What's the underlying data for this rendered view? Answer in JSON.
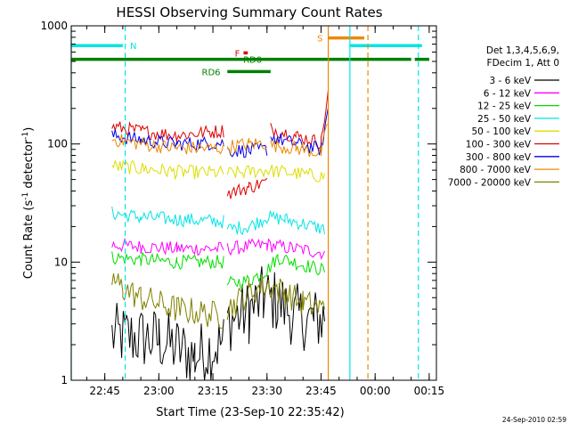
{
  "chart_data": {
    "type": "line",
    "title": "HESSI Observing Summary Count Rates",
    "xlabel": "Start Time (23-Sep-10 22:35:42)",
    "ylabel_main": "Count Rate (s",
    "ylabel_sup1": "-1",
    "ylabel_mid": " detector",
    "ylabel_sup2": "-1",
    "ylabel_end": ")",
    "y_scale": "log",
    "ylim": [
      1,
      1000
    ],
    "xlim": [
      "22:35:42",
      "00:17:00"
    ],
    "x_ticks": [
      "22:45",
      "23:00",
      "23:15",
      "23:30",
      "23:45",
      "00:00",
      "00:15"
    ],
    "y_ticks": [
      "1",
      "10",
      "100",
      "1000"
    ],
    "legend": {
      "position": "right",
      "header": [
        "Det 1,3,4,5,6,9,",
        "FDecim 1, Att 0"
      ]
    },
    "series": [
      {
        "name": "3 - 6 keV",
        "color": "#000000",
        "segments": [
          [
            [
              "22:47",
              2.4
            ],
            [
              "23:00",
              2.2
            ],
            [
              "23:10",
              1.6
            ],
            [
              "23:18",
              2.1
            ]
          ],
          [
            [
              "23:19",
              3.2
            ],
            [
              "23:25",
              3.8
            ],
            [
              "23:29",
              5.0
            ],
            [
              "23:33",
              4.6
            ],
            [
              "23:38",
              3.5
            ],
            [
              "23:43",
              3.2
            ],
            [
              "23:46",
              3.4
            ]
          ]
        ]
      },
      {
        "name": "6 - 12 keV",
        "color": "#ff00ff",
        "segments": [
          [
            [
              "22:47",
              14
            ],
            [
              "22:55",
              13.5
            ],
            [
              "23:05",
              13
            ],
            [
              "23:18",
              13
            ]
          ],
          [
            [
              "23:19",
              13
            ],
            [
              "23:30",
              14
            ],
            [
              "23:46",
              12
            ]
          ]
        ]
      },
      {
        "name": "12 - 25 keV",
        "color": "#00dd00",
        "segments": [
          [
            [
              "22:47",
              11
            ],
            [
              "22:55",
              10.5
            ],
            [
              "23:05",
              10
            ],
            [
              "23:18",
              10
            ]
          ],
          [
            [
              "23:19",
              6.5
            ],
            [
              "23:25",
              7.0
            ],
            [
              "23:30",
              8.5
            ],
            [
              "23:33",
              11
            ],
            [
              "23:40",
              9.5
            ],
            [
              "23:46",
              8.5
            ]
          ]
        ]
      },
      {
        "name": "25 - 50 keV",
        "color": "#00e5e5",
        "segments": [
          [
            [
              "22:47",
              26
            ],
            [
              "22:55",
              24
            ],
            [
              "23:05",
              23
            ],
            [
              "23:18",
              22
            ]
          ],
          [
            [
              "23:19",
              19
            ],
            [
              "23:25",
              20
            ],
            [
              "23:30",
              24
            ],
            [
              "23:35",
              23
            ],
            [
              "23:46",
              19
            ]
          ]
        ]
      },
      {
        "name": "50 - 100 keV",
        "color": "#dddd00",
        "segments": [
          [
            [
              "22:47",
              65
            ],
            [
              "22:55",
              62
            ],
            [
              "23:05",
              58
            ],
            [
              "23:18",
              57
            ]
          ],
          [
            [
              "23:19",
              56
            ],
            [
              "23:30",
              60
            ],
            [
              "23:46",
              53
            ]
          ]
        ]
      },
      {
        "name": "100 - 300 keV",
        "color": "#dd0000",
        "segments": [
          [
            [
              "22:47",
              140
            ],
            [
              "22:55",
              128
            ],
            [
              "23:05",
              118
            ],
            [
              "23:18",
              130
            ]
          ],
          [
            [
              "23:19",
              38
            ],
            [
              "23:25",
              43
            ],
            [
              "23:30",
              48
            ]
          ],
          [
            [
              "23:31",
              135
            ],
            [
              "23:38",
              117
            ],
            [
              "23:45",
              103
            ],
            [
              "23:47",
              280
            ]
          ]
        ]
      },
      {
        "name": "300 - 800 keV",
        "color": "#0000ee",
        "segments": [
          [
            [
              "22:47",
              118
            ],
            [
              "22:55",
              108
            ],
            [
              "23:05",
              100
            ],
            [
              "23:18",
              102
            ]
          ],
          [
            [
              "23:19",
              88
            ],
            [
              "23:25",
              88
            ],
            [
              "23:30",
              90
            ]
          ],
          [
            [
              "23:31",
              115
            ],
            [
              "23:38",
              100
            ],
            [
              "23:45",
              90
            ],
            [
              "23:47",
              200
            ]
          ]
        ]
      },
      {
        "name": "800 - 7000 keV",
        "color": "#ee8800",
        "segments": [
          [
            [
              "22:47",
              110
            ],
            [
              "22:55",
              100
            ],
            [
              "23:05",
              92
            ],
            [
              "23:18",
              92
            ]
          ],
          [
            [
              "23:19",
              95
            ],
            [
              "23:25",
              100
            ],
            [
              "23:30",
              102
            ]
          ],
          [
            [
              "23:31",
              98
            ],
            [
              "23:38",
              92
            ],
            [
              "23:45",
              84
            ],
            [
              "23:47",
              150
            ]
          ]
        ]
      },
      {
        "name": "7000 - 20000 keV",
        "color": "#808000",
        "segments": [
          [
            [
              "22:47",
              7.2
            ],
            [
              "22:50",
              6.0
            ],
            [
              "22:55",
              5.0
            ],
            [
              "23:05",
              4.0
            ],
            [
              "23:18",
              3.5
            ]
          ],
          [
            [
              "23:19",
              4.0
            ],
            [
              "23:25",
              5.5
            ],
            [
              "23:30",
              6.5
            ],
            [
              "23:35",
              5.5
            ],
            [
              "23:40",
              4.5
            ],
            [
              "23:46",
              4.0
            ]
          ]
        ]
      }
    ],
    "vlines": [
      {
        "time": "22:35:42",
        "color": "#00e5e5",
        "style": "solid"
      },
      {
        "time": "22:50:40",
        "color": "#00e5e5",
        "style": "dashed"
      },
      {
        "time": "23:47:00",
        "color": "#ee8800",
        "style": "solid"
      },
      {
        "time": "23:53:00",
        "color": "#00e5e5",
        "style": "solid"
      },
      {
        "time": "23:58:00",
        "color": "#ee8800",
        "style": "dashed"
      },
      {
        "time": "00:12:00",
        "color": "#00e5e5",
        "style": "dashed"
      }
    ],
    "flag_bars": [
      {
        "label": "N",
        "color": "#00e5e5",
        "spans": [
          [
            "22:35:42",
            "22:50:00"
          ],
          [
            "23:53:00",
            "00:13:00"
          ]
        ],
        "level": 680
      },
      {
        "label": "S",
        "color": "#ee8800",
        "spans": [
          [
            "23:47:00",
            "23:57:00"
          ]
        ],
        "level": 790
      },
      {
        "label": "RD0",
        "color": "#008000",
        "spans": [
          [
            "22:35:42",
            "00:10:00"
          ],
          [
            "00:11:00",
            "00:15:00"
          ]
        ],
        "level": 520
      },
      {
        "label": "RD6",
        "color": "#008000",
        "spans": [
          [
            "23:19:00",
            "23:31:00"
          ]
        ],
        "level": 410
      },
      {
        "label": "F",
        "color": "#dd0000",
        "spans": [
          [
            "23:23:30",
            "23:24:40"
          ]
        ],
        "level": 590
      }
    ]
  },
  "footer_date": "24-Sep-2010 02:59"
}
